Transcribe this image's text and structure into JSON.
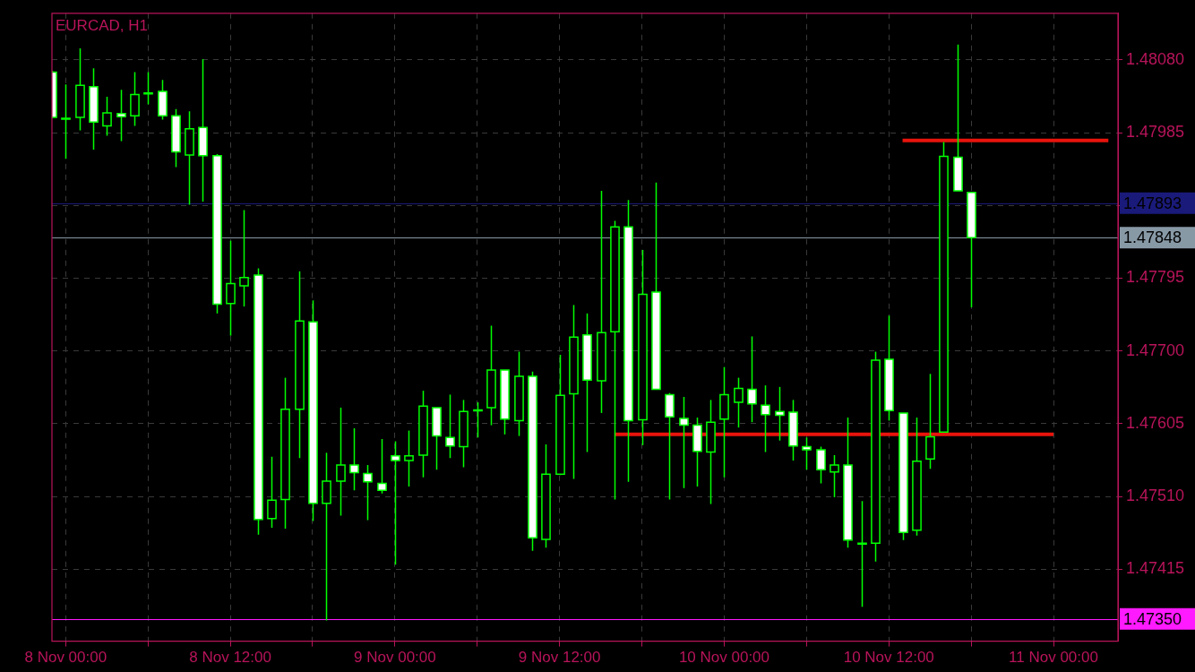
{
  "chart_data": {
    "type": "candlestick",
    "title": "EURCAD, H1",
    "color": "#00ff00",
    "colors": [
      "#ffffff",
      "#ffffff",
      "#000000",
      "#ffffff",
      "#000000",
      "#ffffff",
      "#000000",
      "#000000",
      "#ffffff",
      "#ffffff",
      "#000000",
      "#ffffff",
      "#ffffff",
      "#000000",
      "#000000",
      "#ffffff",
      "#000000",
      "#000000",
      "#000000",
      "#ffffff",
      "#000000",
      "#000000",
      "#ffffff",
      "#ffffff",
      "#ffffff",
      "#ffffff",
      "#000000",
      "#000000",
      "#ffffff",
      "#ffffff",
      "#000000",
      "#000000",
      "#000000",
      "#ffffff",
      "#000000",
      "#ffffff",
      "#000000",
      "#000000",
      "#000000",
      "#ffffff",
      "#000000",
      "#000000",
      "#ffffff",
      "#000000",
      "#ffffff",
      "#ffffff",
      "#ffffff",
      "#ffffff",
      "#000000",
      "#000000",
      "#000000",
      "#ffffff",
      "#ffffff",
      "#ffffff",
      "#ffffff",
      "#ffffff",
      "#ffffff",
      "#000000",
      "#ffffff",
      "#000000",
      "#000000",
      "#ffffff",
      "#ffffff",
      "#000000",
      "#000000",
      "#000000",
      "#ffffff",
      "#ffffff"
    ],
    "x": [
      "--11-07T23:00",
      "--11-08T00:00",
      "--11-08T01:00",
      "--11-08T02:00",
      "--11-08T03:00",
      "--11-08T04:00",
      "--11-08T05:00",
      "--11-08T06:00",
      "--11-08T07:00",
      "--11-08T08:00",
      "--11-08T09:00",
      "--11-08T10:00",
      "--11-08T11:00",
      "--11-08T12:00",
      "--11-08T13:00",
      "--11-08T14:00",
      "--11-08T15:00",
      "--11-08T16:00",
      "--11-08T17:00",
      "--11-08T18:00",
      "--11-08T19:00",
      "--11-08T20:00",
      "--11-08T21:00",
      "--11-08T22:00",
      "--11-08T23:00",
      "--11-09T00:00",
      "--11-09T01:00",
      "--11-09T02:00",
      "--11-09T03:00",
      "--11-09T04:00",
      "--11-09T05:00",
      "--11-09T06:00",
      "--11-09T07:00",
      "--11-09T08:00",
      "--11-09T09:00",
      "--11-09T10:00",
      "--11-09T11:00",
      "--11-09T12:00",
      "--11-09T13:00",
      "--11-09T14:00",
      "--11-09T15:00",
      "--11-09T16:00",
      "--11-09T17:00",
      "--11-09T18:00",
      "--11-09T19:00",
      "--11-09T20:00",
      "--11-09T21:00",
      "--11-09T22:00",
      "--11-09T23:00",
      "--11-10T00:00",
      "--11-10T01:00",
      "--11-10T02:00",
      "--11-10T03:00",
      "--11-10T04:00",
      "--11-10T05:00",
      "--11-10T06:00",
      "--11-10T07:00",
      "--11-10T08:00",
      "--11-10T09:00",
      "--11-10T10:00",
      "--11-10T11:00",
      "--11-10T12:00",
      "--11-10T13:00",
      "--11-10T14:00",
      "--11-10T15:00",
      "--11-10T16:00",
      "--11-10T17:00",
      "--11-10T18:00"
    ],
    "ohlc": [
      [
        1.48064,
        1.48066,
        1.48004,
        1.48005
      ],
      [
        1.48004,
        1.48048,
        1.47951,
        1.48003
      ],
      [
        1.48005,
        1.48095,
        1.47988,
        1.48047
      ],
      [
        1.48045,
        1.48069,
        1.47963,
        1.47999
      ],
      [
        1.47994,
        1.48032,
        1.47981,
        1.48011
      ],
      [
        1.4801,
        1.48041,
        1.47974,
        1.48006
      ],
      [
        1.48007,
        1.48064,
        1.47994,
        1.48035
      ],
      [
        1.48036,
        1.48064,
        1.48022,
        1.48037
      ],
      [
        1.48039,
        1.48054,
        1.48002,
        1.48007
      ],
      [
        1.48007,
        1.48016,
        1.4794,
        1.4796
      ],
      [
        1.47956,
        1.48013,
        1.47891,
        1.4799
      ],
      [
        1.47992,
        1.48081,
        1.47895,
        1.47955
      ],
      [
        1.47955,
        1.47957,
        1.47749,
        1.47761
      ],
      [
        1.47762,
        1.47844,
        1.4772,
        1.47788
      ],
      [
        1.47785,
        1.47884,
        1.47758,
        1.47796
      ],
      [
        1.47799,
        1.47808,
        1.4746,
        1.4748
      ],
      [
        1.47481,
        1.47562,
        1.47469,
        1.47505
      ],
      [
        1.47506,
        1.47665,
        1.47468,
        1.47624
      ],
      [
        1.47624,
        1.47804,
        1.4756,
        1.47739
      ],
      [
        1.47738,
        1.47766,
        1.47478,
        1.47501
      ],
      [
        1.47501,
        1.47567,
        1.47348,
        1.4753
      ],
      [
        1.4753,
        1.47626,
        1.47485,
        1.47551
      ],
      [
        1.47551,
        1.47599,
        1.47518,
        1.47541
      ],
      [
        1.4754,
        1.47551,
        1.47479,
        1.47529
      ],
      [
        1.47527,
        1.47585,
        1.47514,
        1.47518
      ],
      [
        1.47563,
        1.47582,
        1.47421,
        1.47557
      ],
      [
        1.47557,
        1.47596,
        1.47523,
        1.47563
      ],
      [
        1.47564,
        1.47648,
        1.47535,
        1.47628
      ],
      [
        1.47626,
        1.47626,
        1.47545,
        1.47589
      ],
      [
        1.47587,
        1.47643,
        1.4756,
        1.47576
      ],
      [
        1.47575,
        1.47636,
        1.47548,
        1.47621
      ],
      [
        1.47622,
        1.47633,
        1.47587,
        1.47623
      ],
      [
        1.47626,
        1.47733,
        1.47603,
        1.47675
      ],
      [
        1.47675,
        1.47675,
        1.47591,
        1.47611
      ],
      [
        1.47609,
        1.47699,
        1.47589,
        1.47667
      ],
      [
        1.47667,
        1.47673,
        1.47439,
        1.47456
      ],
      [
        1.47454,
        1.47578,
        1.47443,
        1.47539
      ],
      [
        1.47539,
        1.47695,
        1.47538,
        1.47642
      ],
      [
        1.47644,
        1.4776,
        1.47533,
        1.47718
      ],
      [
        1.47721,
        1.47749,
        1.47568,
        1.47662
      ],
      [
        1.47661,
        1.47909,
        1.47619,
        1.47724
      ],
      [
        1.47725,
        1.4787,
        1.47506,
        1.47862
      ],
      [
        1.47862,
        1.47897,
        1.47529,
        1.47609
      ],
      [
        1.4761,
        1.47832,
        1.47577,
        1.47774
      ],
      [
        1.47777,
        1.4792,
        1.4765,
        1.4765
      ],
      [
        1.47643,
        1.47645,
        1.47506,
        1.47614
      ],
      [
        1.47612,
        1.4764,
        1.47521,
        1.47603
      ],
      [
        1.47603,
        1.47613,
        1.47523,
        1.47569
      ],
      [
        1.47568,
        1.47636,
        1.475,
        1.47607
      ],
      [
        1.47611,
        1.47679,
        1.47535,
        1.47643
      ],
      [
        1.47633,
        1.47665,
        1.476,
        1.47651
      ],
      [
        1.4765,
        1.47719,
        1.47607,
        1.47631
      ],
      [
        1.47629,
        1.47655,
        1.47568,
        1.47617
      ],
      [
        1.47621,
        1.47653,
        1.47583,
        1.47616
      ],
      [
        1.4762,
        1.47636,
        1.47557,
        1.47576
      ],
      [
        1.47575,
        1.47587,
        1.47545,
        1.47571
      ],
      [
        1.47571,
        1.47575,
        1.47527,
        1.47545
      ],
      [
        1.47542,
        1.47564,
        1.47509,
        1.47551
      ],
      [
        1.47551,
        1.47613,
        1.47443,
        1.47453
      ],
      [
        1.47448,
        1.47504,
        1.47366,
        1.47449
      ],
      [
        1.47449,
        1.47699,
        1.47425,
        1.47688
      ],
      [
        1.47689,
        1.47746,
        1.47609,
        1.47622
      ],
      [
        1.47619,
        1.47619,
        1.47453,
        1.47463
      ],
      [
        1.47466,
        1.47613,
        1.47459,
        1.47556
      ],
      [
        1.47559,
        1.4767,
        1.47546,
        1.47588
      ],
      [
        1.47594,
        1.47973,
        1.47594,
        1.47954
      ],
      [
        1.47953,
        1.481,
        1.47909,
        1.47909
      ],
      [
        1.47907,
        1.47907,
        1.47757,
        1.47848
      ]
    ],
    "series": [
      {
        "type": "line",
        "color": "#e8140c",
        "x": [
          "--11-09T16:00",
          "--11-11T00:00"
        ],
        "values": [
          1.47591,
          1.47591
        ]
      },
      {
        "type": "line",
        "color": "#e8140c",
        "x": [
          "--11-10T13:00",
          "--11-11T04:00"
        ],
        "values": [
          1.47975,
          1.47975
        ]
      }
    ],
    "ref_lines": [
      {
        "axis": "y",
        "value": 1.47893,
        "label": "1.47893",
        "color": "#1a1a7a"
      },
      {
        "axis": "y",
        "value": 1.47848,
        "label": "1.47848",
        "color": "#8899a6"
      },
      {
        "axis": "y",
        "value": 1.4735,
        "label": "1.47350",
        "color": "#ff1aff"
      }
    ],
    "xlim": [
      "--11-07T23:00",
      "--11-11T04:42"
    ],
    "xticks": [
      {
        "value": "--11-08T00:00",
        "label": "8 Nov 00:00"
      },
      {
        "value": "--11-08T06:00",
        "label": null
      },
      {
        "value": "--11-08T12:00",
        "label": "8 Nov 12:00"
      },
      {
        "value": "--11-08T18:00",
        "label": null
      },
      {
        "value": "--11-09T00:00",
        "label": "9 Nov 00:00"
      },
      {
        "value": "--11-09T06:00",
        "label": null
      },
      {
        "value": "--11-09T12:00",
        "label": "9 Nov 12:00"
      },
      {
        "value": "--11-09T18:00",
        "label": null
      },
      {
        "value": "--11-10T00:00",
        "label": "10 Nov 00:00"
      },
      {
        "value": "--11-10T06:00",
        "label": null
      },
      {
        "value": "--11-10T12:00",
        "label": "10 Nov 12:00"
      },
      {
        "value": "--11-10T18:00",
        "label": null
      },
      {
        "value": "--11-11T00:00",
        "label": "11 Nov 00:00"
      }
    ],
    "ylim": [
      1.47321,
      1.48141
    ],
    "yticks": [
      {
        "value": 1.4808,
        "label": "1.48080"
      },
      {
        "value": 1.47985,
        "label": "1.47985"
      },
      {
        "value": 1.4789,
        "label": null
      },
      {
        "value": 1.47795,
        "label": "1.47795"
      },
      {
        "value": 1.477,
        "label": "1.47700"
      },
      {
        "value": 1.47605,
        "label": "1.47605"
      },
      {
        "value": 1.4751,
        "label": "1.47510"
      },
      {
        "value": 1.47415,
        "label": "1.47415"
      }
    ],
    "grid": true,
    "legend": false
  }
}
